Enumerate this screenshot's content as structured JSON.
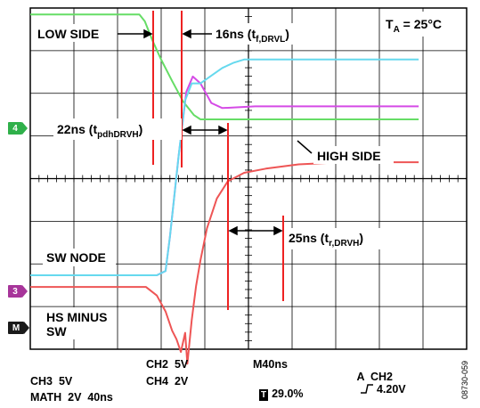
{
  "chart_data": {
    "type": "line",
    "series": [
      {
        "channel": "4",
        "color": "#66dd66",
        "x": [
          -160,
          -16,
          -11,
          -4,
          4,
          14,
          24,
          34,
          40,
          60,
          100,
          200,
          240
        ],
        "y": [
          4.92,
          4.92,
          4.6,
          3.7,
          2.8,
          1.8,
          0.85,
          0.2,
          0,
          0,
          0,
          0,
          0
        ]
      },
      {
        "channel": "3",
        "color": "#d54be6",
        "x": [
          -160,
          0,
          8,
          12,
          20,
          27,
          33,
          40,
          50,
          60,
          90,
          240
        ],
        "y": [
          0,
          0,
          0.5,
          4.5,
          14,
          21.5,
          23.3,
          22.5,
          20.2,
          19.6,
          19.8,
          19.8
        ]
      },
      {
        "channel": "2",
        "color": "#66d9ee",
        "x": [
          -160,
          0,
          8,
          12,
          20,
          26,
          32,
          40,
          50,
          60,
          70,
          80,
          240
        ],
        "y": [
          0,
          0,
          0.5,
          4.5,
          14,
          20.5,
          22.5,
          22.5,
          23.4,
          24.3,
          24.9,
          25.3,
          25.3
        ]
      },
      {
        "channel": "MATH",
        "color": "#ee5555",
        "x": [
          -160,
          -10,
          0,
          8,
          14,
          18,
          22,
          26,
          28,
          32,
          36,
          40,
          46,
          55,
          65,
          80,
          100,
          130,
          170,
          240
        ],
        "y": [
          1.75,
          1.75,
          1.35,
          0.6,
          -0.3,
          -0.7,
          -1.3,
          -0.4,
          -1.85,
          0.2,
          1.8,
          3.0,
          4.5,
          5.9,
          6.7,
          7.1,
          7.3,
          7.5,
          7.6,
          7.6
        ]
      }
    ],
    "xlim": [
      -160,
      240
    ],
    "x_unit": "ns",
    "grid": true
  },
  "labels": {
    "temp_main": "T",
    "temp_sub": "A",
    "temp_rest": " = 25°C",
    "low_side": "LOW SIDE",
    "high_side": "HIGH SIDE",
    "sw_node": "SW NODE",
    "hs_minus_1": "HS MINUS",
    "hs_minus_2": "SW",
    "ann_fall_main": "16ns (t",
    "ann_fall_sub": "f,DRVL",
    "ann_fall_end": ")",
    "ann_pdh_main": "22ns (t",
    "ann_pdh_sub": "pdhDRVH",
    "ann_pdh_end": ")",
    "ann_rise_main": "25ns (t",
    "ann_rise_sub": "r,DRVH",
    "ann_rise_end": ")"
  },
  "markers": {
    "ch4": {
      "text": "4",
      "color": "#2fb04a"
    },
    "ch3": {
      "text": "3",
      "color": "#a7359a"
    },
    "math": {
      "text": "M",
      "color": "#1a1a1a"
    }
  },
  "footer": {
    "ch2": "CH2  5V",
    "ch4": "CH4  2V",
    "ch3": "CH3  5V",
    "math": "MATH  2V  40ns",
    "timebase": "M40ns",
    "trig_pos_icon": "T",
    "trig_pos": "29.0%",
    "trigger_a": "A  CH2",
    "trigger_edge": "rising-edge-icon",
    "trigger_level": "4.20V"
  },
  "figure_id": "08730-059"
}
